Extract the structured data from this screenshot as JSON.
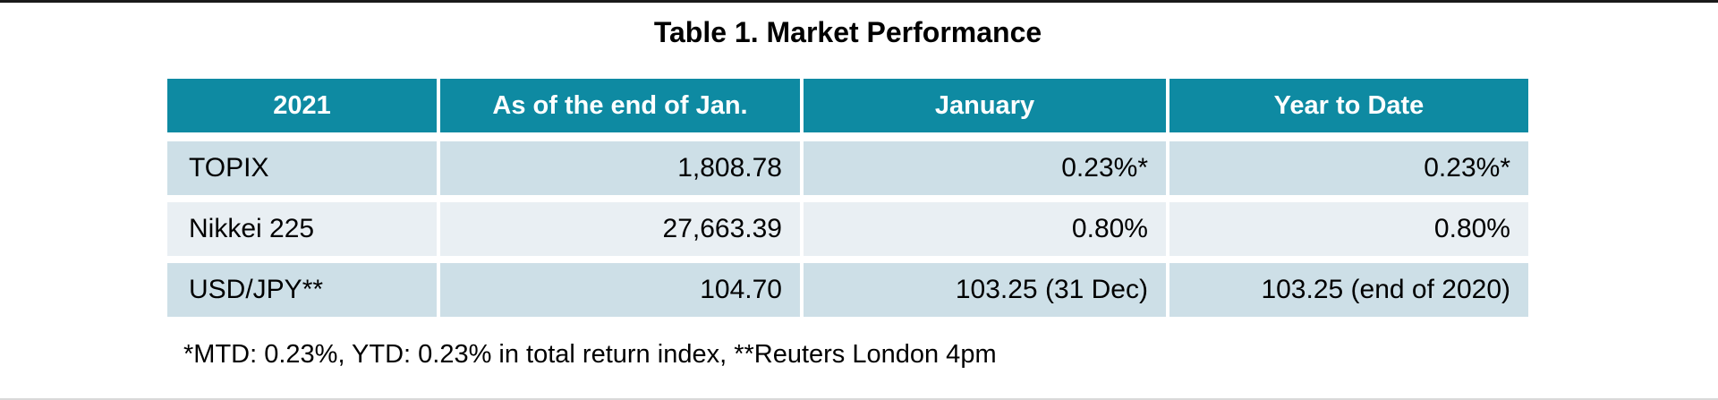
{
  "page": {
    "title": "Table 1. Market Performance"
  },
  "table": {
    "columns": [
      "2021",
      "As of the end of Jan.",
      "January",
      "Year to Date"
    ],
    "rows": [
      {
        "label": "TOPIX",
        "values": [
          "1,808.78",
          "0.23%*",
          "0.23%*"
        ]
      },
      {
        "label": "Nikkei 225",
        "values": [
          "27,663.39",
          "0.80%",
          "0.80%"
        ]
      },
      {
        "label": "USD/JPY**",
        "values": [
          "104.70",
          "103.25 (31 Dec)",
          "103.25 (end of 2020)"
        ]
      }
    ],
    "footnote": "*MTD: 0.23%, YTD: 0.23% in total return index, **Reuters London 4pm"
  },
  "chart_data": {
    "type": "table",
    "title": "Table 1. Market Performance",
    "columns": [
      "2021",
      "As of the end of Jan.",
      "January",
      "Year to Date"
    ],
    "rows": [
      [
        "TOPIX",
        "1,808.78",
        "0.23%*",
        "0.23%*"
      ],
      [
        "Nikkei 225",
        "27,663.39",
        "0.80%",
        "0.80%"
      ],
      [
        "USD/JPY**",
        "104.70",
        "103.25 (31 Dec)",
        "103.25 (end of 2020)"
      ]
    ],
    "footnote": "*MTD: 0.23%, YTD: 0.23% in total return index, **Reuters London 4pm"
  },
  "colors": {
    "header_bg": "#0e8aa2",
    "header_text": "#ffffff",
    "row_alt_a": "#cddfe7",
    "row_alt_b": "#e9eff3",
    "body_text": "#000000",
    "top_rule": "#1a1a1a",
    "bottom_rule": "#d9d9d9"
  }
}
